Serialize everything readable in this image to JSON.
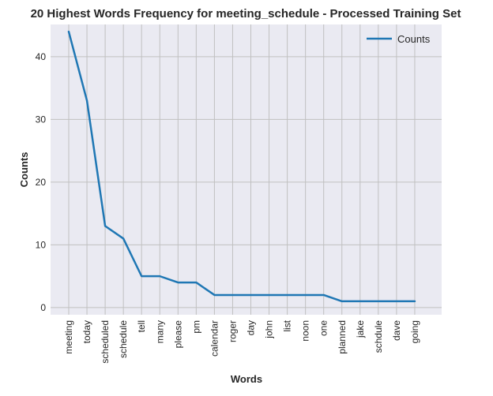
{
  "chart_data": {
    "type": "line",
    "title": "20 Highest Words Frequency for meeting_schedule - Processed Training Set",
    "xlabel": "Words",
    "ylabel": "Counts",
    "categories": [
      "meeting",
      "today",
      "scheduled",
      "schedule",
      "tell",
      "many",
      "please",
      "pm",
      "calendar",
      "roger",
      "day",
      "john",
      "list",
      "noon",
      "one",
      "planned",
      "jake",
      "schdule",
      "dave",
      "going"
    ],
    "series": [
      {
        "name": "Counts",
        "values": [
          44,
          33,
          13,
          11,
          5,
          5,
          4,
          4,
          2,
          2,
          2,
          2,
          2,
          2,
          2,
          1,
          1,
          1,
          1,
          1
        ],
        "color": "#1f77b4"
      }
    ],
    "yticks": [
      0,
      10,
      20,
      30,
      40
    ],
    "ylim": [
      -1.15,
      45.15
    ],
    "grid": true,
    "legend_position": "top-right",
    "background_color": "#eaeaf2",
    "grid_color": "#c0c0c0"
  }
}
